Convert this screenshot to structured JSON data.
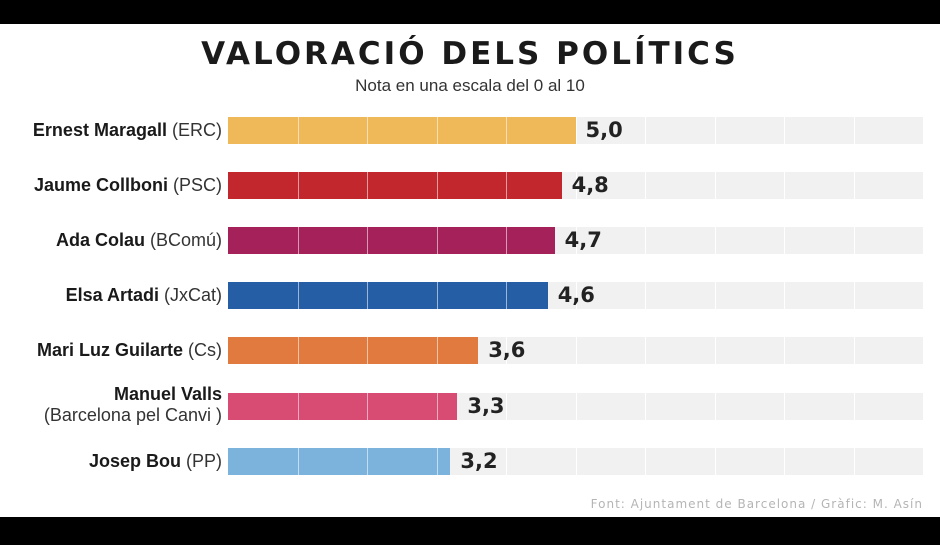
{
  "title": "VALORACIÓ DELS POLÍTICS",
  "subtitle": "Nota en una escala del 0 al 10",
  "source": "Font: Ajuntament de Barcelona / Gràfic: M. Asín",
  "chart_data": {
    "type": "bar",
    "orientation": "horizontal",
    "title": "VALORACIÓ DELS POLÍTICS",
    "subtitle": "Nota en una escala del 0 al 10",
    "xlim": [
      0,
      10
    ],
    "grid": true,
    "categories": [
      {
        "name": "Ernest Maragall",
        "party": "(ERC)",
        "value": 5.0,
        "label": "5,0",
        "color": "#efb95a"
      },
      {
        "name": "Jaume Collboni",
        "party": "(PSC)",
        "value": 4.8,
        "label": "4,8",
        "color": "#c1272d"
      },
      {
        "name": "Ada Colau",
        "party": "(BComú)",
        "value": 4.7,
        "label": "4,7",
        "color": "#a52159"
      },
      {
        "name": "Elsa Artadi",
        "party": "(JxCat)",
        "value": 4.6,
        "label": "4,6",
        "color": "#265ea6"
      },
      {
        "name": "Mari Luz Guilarte",
        "party": "(Cs)",
        "value": 3.6,
        "label": "3,6",
        "color": "#e07a3e"
      },
      {
        "name": "Manuel Valls",
        "party": "(Barcelona pel Canvi )",
        "value": 3.3,
        "label": "3,3",
        "color": "#d84b73"
      },
      {
        "name": "Josep Bou",
        "party": "(PP)",
        "value": 3.2,
        "label": "3,2",
        "color": "#7cb3dd"
      }
    ]
  }
}
